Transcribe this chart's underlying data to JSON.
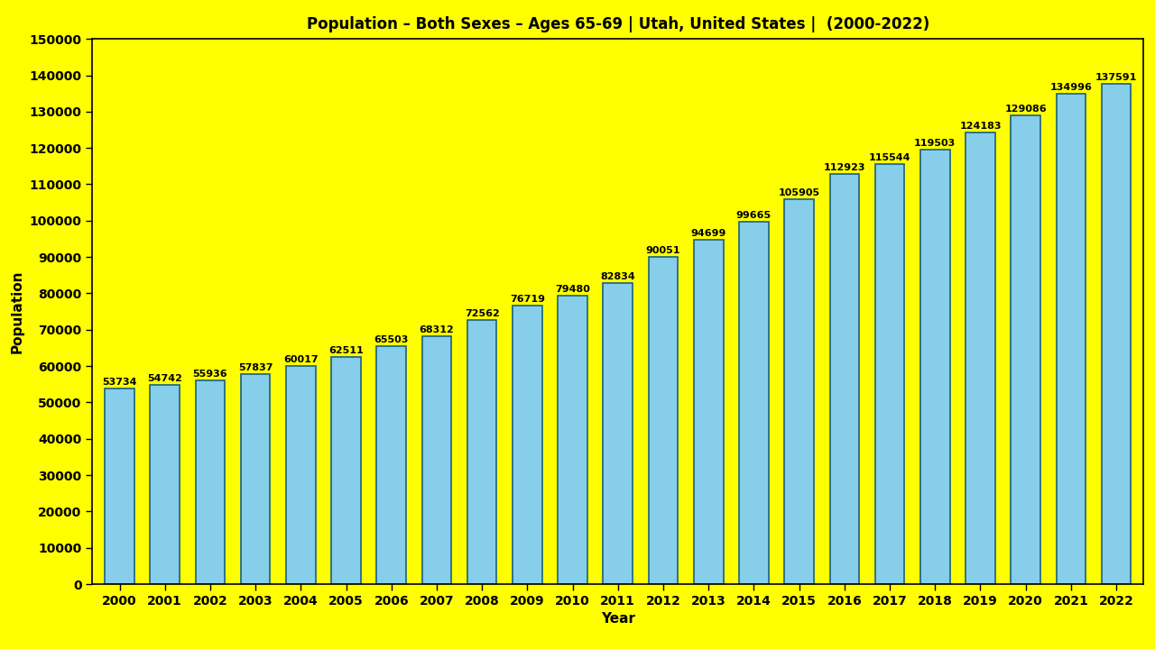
{
  "title": "Population – Both Sexes – Ages 65-69 | Utah, United States |  (2000-2022)",
  "xlabel": "Year",
  "ylabel": "Population",
  "background_color": "#FFFF00",
  "bar_color": "#87CEEB",
  "bar_edge_color": "#1A6080",
  "years": [
    2000,
    2001,
    2002,
    2003,
    2004,
    2005,
    2006,
    2007,
    2008,
    2009,
    2010,
    2011,
    2012,
    2013,
    2014,
    2015,
    2016,
    2017,
    2018,
    2019,
    2020,
    2021,
    2022
  ],
  "values": [
    53734,
    54742,
    55936,
    57837,
    60017,
    62511,
    65503,
    68312,
    72562,
    76719,
    79480,
    82834,
    90051,
    94699,
    99665,
    105905,
    112923,
    115544,
    119503,
    124183,
    129086,
    134996,
    137591
  ],
  "ylim": [
    0,
    150000
  ],
  "ytick_step": 10000,
  "title_fontsize": 12,
  "label_fontsize": 11,
  "tick_fontsize": 10,
  "annotation_fontsize": 8
}
